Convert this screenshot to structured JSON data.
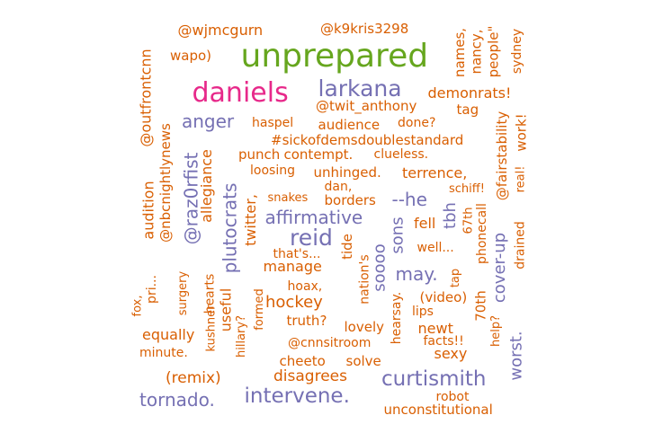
{
  "colors": {
    "orange": "#d95f02",
    "purple": "#7570b3",
    "pink": "#e7298a",
    "green": "#66a61e"
  },
  "words": [
    {
      "text": "unprepared",
      "color": "green"
    },
    {
      "text": "daniels",
      "color": "pink"
    },
    {
      "text": "larkana",
      "color": "purple"
    },
    {
      "text": "reid",
      "color": "purple"
    },
    {
      "text": "curtismith",
      "color": "purple"
    },
    {
      "text": "intervene.",
      "color": "purple"
    },
    {
      "text": "tornado.",
      "color": "purple"
    },
    {
      "text": "affirmative",
      "color": "purple"
    },
    {
      "text": "anger",
      "color": "purple"
    },
    {
      "text": "@raz0rfist",
      "color": "purple"
    },
    {
      "text": "plutocrats",
      "color": "purple"
    },
    {
      "text": "--he",
      "color": "purple"
    },
    {
      "text": "tbh",
      "color": "purple"
    },
    {
      "text": "sons",
      "color": "purple"
    },
    {
      "text": "soooo",
      "color": "purple"
    },
    {
      "text": "may.",
      "color": "purple"
    },
    {
      "text": "cover-up",
      "color": "purple"
    },
    {
      "text": "worst.",
      "color": "purple"
    },
    {
      "text": "@wjmcgurn",
      "color": "orange"
    },
    {
      "text": "@k9kris3298",
      "color": "orange"
    },
    {
      "text": "wapo)",
      "color": "orange"
    },
    {
      "text": "names,",
      "color": "orange"
    },
    {
      "text": "nancy,",
      "color": "orange"
    },
    {
      "text": "people\"",
      "color": "orange"
    },
    {
      "text": "sydney",
      "color": "orange"
    },
    {
      "text": "demonrats!",
      "color": "orange"
    },
    {
      "text": "@twit_anthony",
      "color": "orange"
    },
    {
      "text": "tag",
      "color": "orange"
    },
    {
      "text": "haspel",
      "color": "orange"
    },
    {
      "text": "audience",
      "color": "orange"
    },
    {
      "text": "done?",
      "color": "orange"
    },
    {
      "text": "@fairstability",
      "color": "orange"
    },
    {
      "text": "work!",
      "color": "orange"
    },
    {
      "text": "#sickofdemsdoublestandard",
      "color": "orange"
    },
    {
      "text": "punch",
      "color": "orange"
    },
    {
      "text": "contempt.",
      "color": "orange"
    },
    {
      "text": "clueless.",
      "color": "orange"
    },
    {
      "text": "@outfrontcnn",
      "color": "orange"
    },
    {
      "text": "@nbcnightlynews",
      "color": "orange"
    },
    {
      "text": "audition",
      "color": "orange"
    },
    {
      "text": "allegiance",
      "color": "orange"
    },
    {
      "text": "loosing",
      "color": "orange"
    },
    {
      "text": "unhinged.",
      "color": "orange"
    },
    {
      "text": "terrence,",
      "color": "orange"
    },
    {
      "text": "real!",
      "color": "orange"
    },
    {
      "text": "dan,",
      "color": "orange"
    },
    {
      "text": "schiff!",
      "color": "orange"
    },
    {
      "text": "snakes",
      "color": "orange"
    },
    {
      "text": "borders",
      "color": "orange"
    },
    {
      "text": "twitter,",
      "color": "orange"
    },
    {
      "text": "fell",
      "color": "orange"
    },
    {
      "text": "67th",
      "color": "orange"
    },
    {
      "text": "phonecall",
      "color": "orange"
    },
    {
      "text": "drained",
      "color": "orange"
    },
    {
      "text": "that's...",
      "color": "orange"
    },
    {
      "text": "tide",
      "color": "orange"
    },
    {
      "text": "well...",
      "color": "orange"
    },
    {
      "text": "manage",
      "color": "orange"
    },
    {
      "text": "nation's",
      "color": "orange"
    },
    {
      "text": "tap",
      "color": "orange"
    },
    {
      "text": "hoax,",
      "color": "orange"
    },
    {
      "text": "pri...",
      "color": "orange"
    },
    {
      "text": "fox,",
      "color": "orange"
    },
    {
      "text": "surgery",
      "color": "orange"
    },
    {
      "text": "hearts",
      "color": "orange"
    },
    {
      "text": "useful",
      "color": "orange"
    },
    {
      "text": "hockey",
      "color": "orange"
    },
    {
      "text": "(video)",
      "color": "orange"
    },
    {
      "text": "formed",
      "color": "orange"
    },
    {
      "text": "lips",
      "color": "orange"
    },
    {
      "text": "70th",
      "color": "orange"
    },
    {
      "text": "help?",
      "color": "orange"
    },
    {
      "text": "truth?",
      "color": "orange"
    },
    {
      "text": "hearsay.",
      "color": "orange"
    },
    {
      "text": "newt",
      "color": "orange"
    },
    {
      "text": "kushner",
      "color": "orange"
    },
    {
      "text": "equally",
      "color": "orange"
    },
    {
      "text": "lovely",
      "color": "orange"
    },
    {
      "text": "hillary?",
      "color": "orange"
    },
    {
      "text": "@cnnsitroom",
      "color": "orange"
    },
    {
      "text": "facts!!",
      "color": "orange"
    },
    {
      "text": "minute.",
      "color": "orange"
    },
    {
      "text": "sexy",
      "color": "orange"
    },
    {
      "text": "cheeto",
      "color": "orange"
    },
    {
      "text": "solve",
      "color": "orange"
    },
    {
      "text": "disagrees",
      "color": "orange"
    },
    {
      "text": "(remix)",
      "color": "orange"
    },
    {
      "text": "robot",
      "color": "orange"
    },
    {
      "text": "unconstitutional",
      "color": "orange"
    }
  ]
}
